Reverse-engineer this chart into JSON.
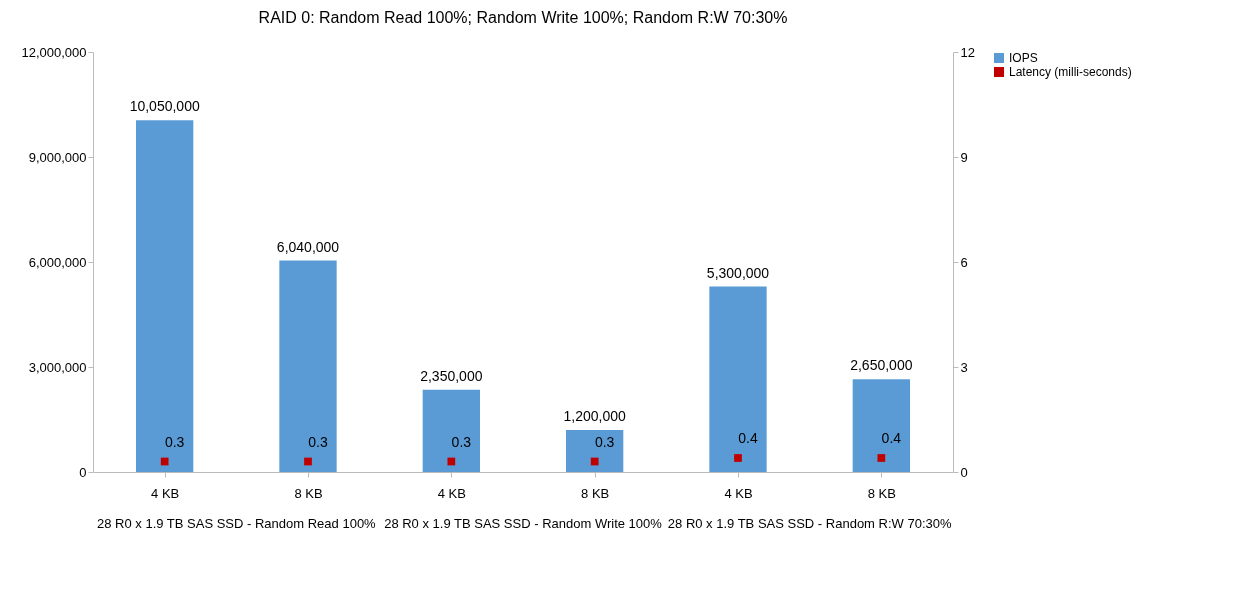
{
  "chart_data": {
    "type": "bar",
    "title": "RAID 0: Random Read 100%; Random Write 100%; Random R:W 70:30%",
    "categories": [
      "4 KB",
      "8 KB",
      "4 KB",
      "8 KB",
      "4 KB",
      "8 KB"
    ],
    "annotations": [
      "28 R0 x 1.9 TB SAS SSD - Random Read 100%",
      "28 R0 x 1.9 TB SAS SSD - Random Write 100%",
      "28 R0 x 1.9 TB SAS SSD - Random R:W 70:30%"
    ],
    "series": [
      {
        "name": "IOPS",
        "color": "#5b9bd5",
        "values": [
          10050000,
          6040000,
          2350000,
          1200000,
          5300000,
          2650000
        ],
        "value_labels": [
          "10,050,000",
          "6,040,000",
          "2,350,000",
          "1,200,000",
          "5,300,000",
          "2,650,000"
        ]
      },
      {
        "name": "Latency (milli-seconds)",
        "type": "scatter",
        "axis": "y2",
        "marker": "square",
        "color": "#c00000",
        "values": [
          0.3,
          0.3,
          0.3,
          0.3,
          0.4,
          0.4
        ],
        "value_labels": [
          "0.3",
          "0.3",
          "0.3",
          "0.3",
          "0.4",
          "0.4"
        ]
      }
    ],
    "ylim": [
      0,
      12000000
    ],
    "yticks": [
      {
        "value": 0,
        "label": "0"
      },
      {
        "value": 3000000,
        "label": "3,000,000"
      },
      {
        "value": 6000000,
        "label": "6,000,000"
      },
      {
        "value": 9000000,
        "label": "9,000,000"
      },
      {
        "value": 12000000,
        "label": "12,000,000"
      }
    ],
    "y2lim": [
      0,
      12
    ],
    "y2ticks": [
      0,
      3,
      6,
      9,
      12
    ],
    "legend": "right"
  }
}
